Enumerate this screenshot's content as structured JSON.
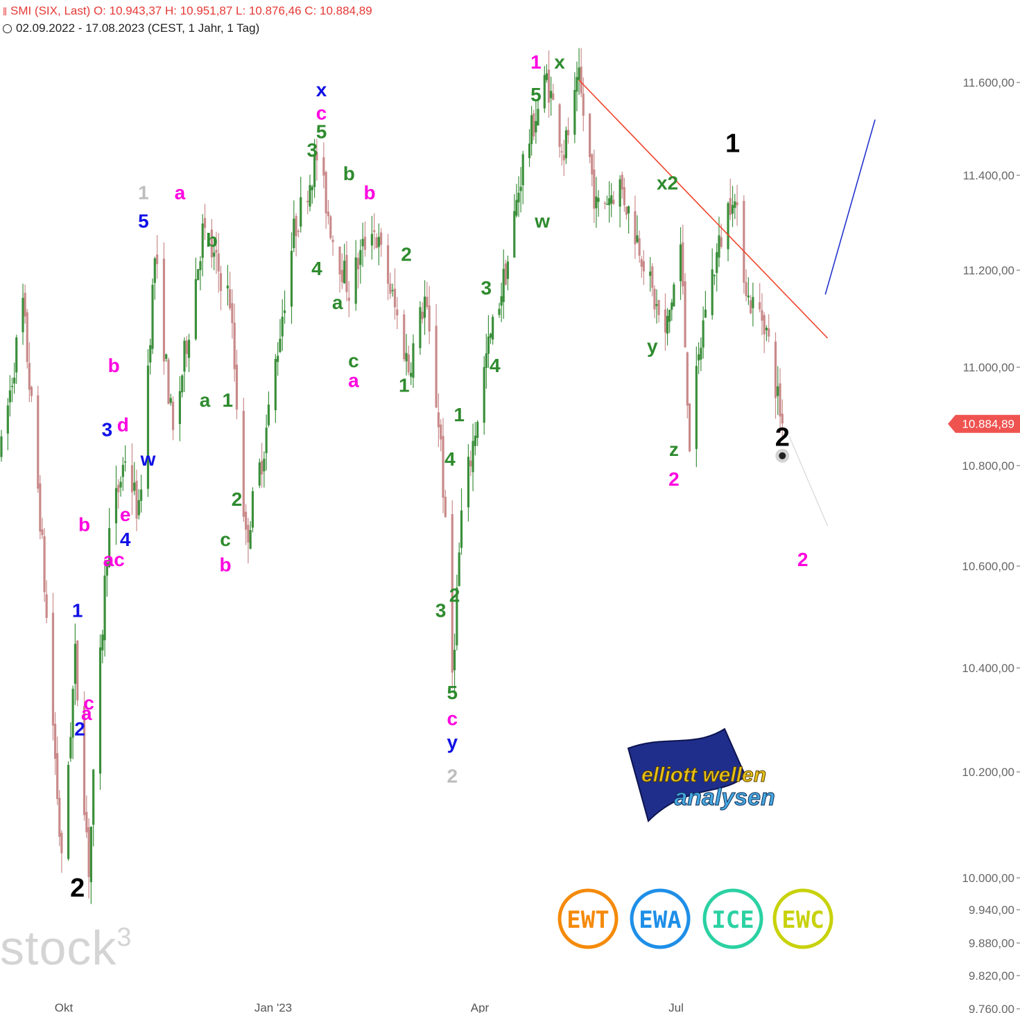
{
  "header": {
    "line1": "SMI (SIX, Last)  O: 10.943,37  H: 10.951,87  L: 10.876,46  C: 10.884,89",
    "line2": "02.09.2022 - 17.08.2023   (CEST, 1 Jahr, 1 Tag)"
  },
  "watermark": {
    "text": "stock",
    "sup": "3"
  },
  "colors": {
    "up": "#3b8f3b",
    "down": "#c98a8a",
    "price_tag": "#ef5350",
    "magenta": "#ff00e0",
    "green": "#2e8b2e",
    "blue": "#1010e6",
    "grey": "#bdbdbd",
    "black": "#000000",
    "trend_red": "#f0432a",
    "trend_blue": "#2233cc",
    "projection": "#d9d9d9"
  },
  "chart_data": {
    "type": "candlestick",
    "title": "SMI (SIX, Last)",
    "period": "02.09.2022 - 17.08.2023",
    "ohlc_last": {
      "open": 10943.37,
      "high": 10951.87,
      "low": 10876.46,
      "close": 10884.89
    },
    "last_price_label": "10.884,89",
    "x_ticks": [
      {
        "label": "Okt",
        "date": "2022-10-01"
      },
      {
        "label": "Jan '23",
        "date": "2023-01-01"
      },
      {
        "label": "Apr",
        "date": "2023-04-01"
      },
      {
        "label": "Jul",
        "date": "2023-07-01"
      }
    ],
    "y_ticks": [
      {
        "value": 11600,
        "label": "11.600,00"
      },
      {
        "value": 11400,
        "label": "11.400,00"
      },
      {
        "value": 11200,
        "label": "11.200,00"
      },
      {
        "value": 11000,
        "label": "11.000,00"
      },
      {
        "value": 10800,
        "label": "10.800,00"
      },
      {
        "value": 10600,
        "label": "10.600,00"
      },
      {
        "value": 10400,
        "label": "10.400,00"
      },
      {
        "value": 10200,
        "label": "10.200,00"
      },
      {
        "value": 10000,
        "label": "10.000,00"
      },
      {
        "value": 9940,
        "label": "9.940,00"
      },
      {
        "value": 9880,
        "label": "9.880,00"
      },
      {
        "value": 9820,
        "label": "9.820,00"
      },
      {
        "value": 9760,
        "label": "9.760,00"
      }
    ],
    "price_path": [
      {
        "date": "2022-09-02",
        "price": 10830
      },
      {
        "date": "2022-09-12",
        "price": 11130
      },
      {
        "date": "2022-09-20",
        "price": 10700
      },
      {
        "date": "2022-09-30",
        "price": 10020
      },
      {
        "date": "2022-10-06",
        "price": 10420
      },
      {
        "date": "2022-10-12",
        "price": 10020
      },
      {
        "date": "2022-10-20",
        "price": 10640
      },
      {
        "date": "2022-10-28",
        "price": 10820
      },
      {
        "date": "2022-11-03",
        "price": 10700
      },
      {
        "date": "2022-11-10",
        "price": 11230
      },
      {
        "date": "2022-11-18",
        "price": 10860
      },
      {
        "date": "2022-12-01",
        "price": 11280
      },
      {
        "date": "2022-12-13",
        "price": 11140
      },
      {
        "date": "2022-12-20",
        "price": 10650
      },
      {
        "date": "2022-12-28",
        "price": 10840
      },
      {
        "date": "2023-01-10",
        "price": 11280
      },
      {
        "date": "2023-01-20",
        "price": 11440
      },
      {
        "date": "2023-01-27",
        "price": 11270
      },
      {
        "date": "2023-02-03",
        "price": 11160
      },
      {
        "date": "2023-02-13",
        "price": 11300
      },
      {
        "date": "2023-02-20",
        "price": 11180
      },
      {
        "date": "2023-03-01",
        "price": 11000
      },
      {
        "date": "2023-03-08",
        "price": 11140
      },
      {
        "date": "2023-03-15",
        "price": 10850
      },
      {
        "date": "2023-03-20",
        "price": 10390
      },
      {
        "date": "2023-03-24",
        "price": 10700
      },
      {
        "date": "2023-04-04",
        "price": 11020
      },
      {
        "date": "2023-04-14",
        "price": 11220
      },
      {
        "date": "2023-04-21",
        "price": 11430
      },
      {
        "date": "2023-05-02",
        "price": 11610
      },
      {
        "date": "2023-05-10",
        "price": 11450
      },
      {
        "date": "2023-05-17",
        "price": 11600
      },
      {
        "date": "2023-05-25",
        "price": 11330
      },
      {
        "date": "2023-06-05",
        "price": 11380
      },
      {
        "date": "2023-06-15",
        "price": 11240
      },
      {
        "date": "2023-06-20",
        "price": 11150
      },
      {
        "date": "2023-06-26",
        "price": 11060
      },
      {
        "date": "2023-07-03",
        "price": 11250
      },
      {
        "date": "2023-07-07",
        "price": 10850
      },
      {
        "date": "2023-07-14",
        "price": 11130
      },
      {
        "date": "2023-07-20",
        "price": 11250
      },
      {
        "date": "2023-07-26",
        "price": 11370
      },
      {
        "date": "2023-08-02",
        "price": 11140
      },
      {
        "date": "2023-08-09",
        "price": 11100
      },
      {
        "date": "2023-08-17",
        "price": 10885
      }
    ],
    "trendlines": [
      {
        "name": "downtrend-red",
        "from": {
          "date": "2023-05-17",
          "price": 11605
        },
        "to": {
          "date": "2023-09-06",
          "price": 11060
        }
      },
      {
        "name": "uptrend-blue",
        "from": {
          "date": "2023-09-05",
          "price": 11150
        },
        "to": {
          "date": "2023-09-27",
          "price": 11520
        }
      },
      {
        "name": "projection-grey",
        "from": {
          "date": "2023-08-20",
          "price": 10860
        },
        "to": {
          "date": "2023-09-06",
          "price": 10680
        }
      }
    ],
    "wave_labels": [
      {
        "text": "2",
        "date": "2022-10-07",
        "price": 9965,
        "color": "black"
      },
      {
        "text": "1",
        "date": "2022-10-07",
        "price": 10500,
        "color": "blue"
      },
      {
        "text": "2",
        "date": "2022-10-08",
        "price": 10270,
        "color": "blue"
      },
      {
        "text": "a",
        "date": "2022-10-11",
        "price": 10300,
        "color": "magenta"
      },
      {
        "text": "c",
        "date": "2022-10-12",
        "price": 10320,
        "color": "magenta"
      },
      {
        "text": "b",
        "date": "2022-10-10",
        "price": 10670,
        "color": "magenta"
      },
      {
        "text": "ac",
        "date": "2022-10-23",
        "price": 10600,
        "color": "magenta"
      },
      {
        "text": "3",
        "date": "2022-10-20",
        "price": 10860,
        "color": "blue"
      },
      {
        "text": "b",
        "date": "2022-10-23",
        "price": 10990,
        "color": "magenta"
      },
      {
        "text": "d",
        "date": "2022-10-27",
        "price": 10870,
        "color": "magenta"
      },
      {
        "text": "e",
        "date": "2022-10-28",
        "price": 10690,
        "color": "magenta"
      },
      {
        "text": "4",
        "date": "2022-10-28",
        "price": 10640,
        "color": "blue"
      },
      {
        "text": "w",
        "date": "2022-11-07",
        "price": 10800,
        "color": "blue"
      },
      {
        "text": "5",
        "date": "2022-11-05",
        "price": 11290,
        "color": "blue"
      },
      {
        "text": "1",
        "date": "2022-11-05",
        "price": 11350,
        "color": "grey"
      },
      {
        "text": "a",
        "date": "2022-11-21",
        "price": 11350,
        "color": "magenta"
      },
      {
        "text": "b",
        "date": "2022-12-05",
        "price": 11250,
        "color": "green"
      },
      {
        "text": "a",
        "date": "2022-12-02",
        "price": 10920,
        "color": "green"
      },
      {
        "text": "1",
        "date": "2022-12-12",
        "price": 10920,
        "color": "green"
      },
      {
        "text": "c",
        "date": "2022-12-11",
        "price": 10640,
        "color": "green"
      },
      {
        "text": "b",
        "date": "2022-12-11",
        "price": 10590,
        "color": "magenta"
      },
      {
        "text": "2",
        "date": "2022-12-16",
        "price": 10720,
        "color": "green"
      },
      {
        "text": "3",
        "date": "2023-01-18",
        "price": 11440,
        "color": "green"
      },
      {
        "text": "4",
        "date": "2023-01-20",
        "price": 11190,
        "color": "green"
      },
      {
        "text": "5",
        "date": "2023-01-22",
        "price": 11480,
        "color": "green"
      },
      {
        "text": "c",
        "date": "2023-01-22",
        "price": 11520,
        "color": "magenta"
      },
      {
        "text": "x",
        "date": "2023-01-22",
        "price": 11570,
        "color": "blue"
      },
      {
        "text": "b",
        "date": "2023-02-03",
        "price": 11390,
        "color": "green"
      },
      {
        "text": "a",
        "date": "2023-01-29",
        "price": 11120,
        "color": "green"
      },
      {
        "text": "c",
        "date": "2023-02-05",
        "price": 11000,
        "color": "green"
      },
      {
        "text": "a",
        "date": "2023-02-05",
        "price": 10960,
        "color": "magenta"
      },
      {
        "text": "b",
        "date": "2023-02-12",
        "price": 11350,
        "color": "magenta"
      },
      {
        "text": "2",
        "date": "2023-02-28",
        "price": 11220,
        "color": "green"
      },
      {
        "text": "1",
        "date": "2023-02-27",
        "price": 10950,
        "color": "green"
      },
      {
        "text": "1",
        "date": "2023-03-23",
        "price": 10890,
        "color": "green"
      },
      {
        "text": "4",
        "date": "2023-03-19",
        "price": 10800,
        "color": "green"
      },
      {
        "text": "3",
        "date": "2023-03-15",
        "price": 10500,
        "color": "green"
      },
      {
        "text": "2",
        "date": "2023-03-21",
        "price": 10530,
        "color": "green"
      },
      {
        "text": "5",
        "date": "2023-03-20",
        "price": 10340,
        "color": "green"
      },
      {
        "text": "c",
        "date": "2023-03-20",
        "price": 10290,
        "color": "magenta"
      },
      {
        "text": "y",
        "date": "2023-03-20",
        "price": 10245,
        "color": "blue"
      },
      {
        "text": "2",
        "date": "2023-03-20",
        "price": 10180,
        "color": "grey"
      },
      {
        "text": "3",
        "date": "2023-04-04",
        "price": 11150,
        "color": "green"
      },
      {
        "text": "4",
        "date": "2023-04-08",
        "price": 10990,
        "color": "green"
      },
      {
        "text": "5",
        "date": "2023-04-27",
        "price": 11560,
        "color": "green"
      },
      {
        "text": "1",
        "date": "2023-04-27",
        "price": 11630,
        "color": "magenta"
      },
      {
        "text": "w",
        "date": "2023-04-30",
        "price": 11290,
        "color": "green"
      },
      {
        "text": "x",
        "date": "2023-05-08",
        "price": 11630,
        "color": "green"
      },
      {
        "text": "y",
        "date": "2023-06-20",
        "price": 11030,
        "color": "green"
      },
      {
        "text": "x2",
        "date": "2023-06-27",
        "price": 11370,
        "color": "green"
      },
      {
        "text": "z",
        "date": "2023-06-30",
        "price": 10820,
        "color": "green"
      },
      {
        "text": "2",
        "date": "2023-06-30",
        "price": 10760,
        "color": "magenta"
      },
      {
        "text": "1",
        "date": "2023-07-26",
        "price": 11450,
        "color": "black"
      },
      {
        "text": "2",
        "date": "2023-08-17",
        "price": 10840,
        "color": "black"
      },
      {
        "text": "2",
        "date": "2023-08-26",
        "price": 10600,
        "color": "magenta"
      }
    ]
  },
  "badges": [
    {
      "label": "EWT",
      "color": "#f58a0b"
    },
    {
      "label": "EWA",
      "color": "#1e8fe8"
    },
    {
      "label": "ICE",
      "color": "#2bd1a2"
    },
    {
      "label": "EWC",
      "color": "#c8d20c"
    }
  ],
  "brand_logo": {
    "line1": "elliott wellen",
    "line2": "analysen"
  }
}
